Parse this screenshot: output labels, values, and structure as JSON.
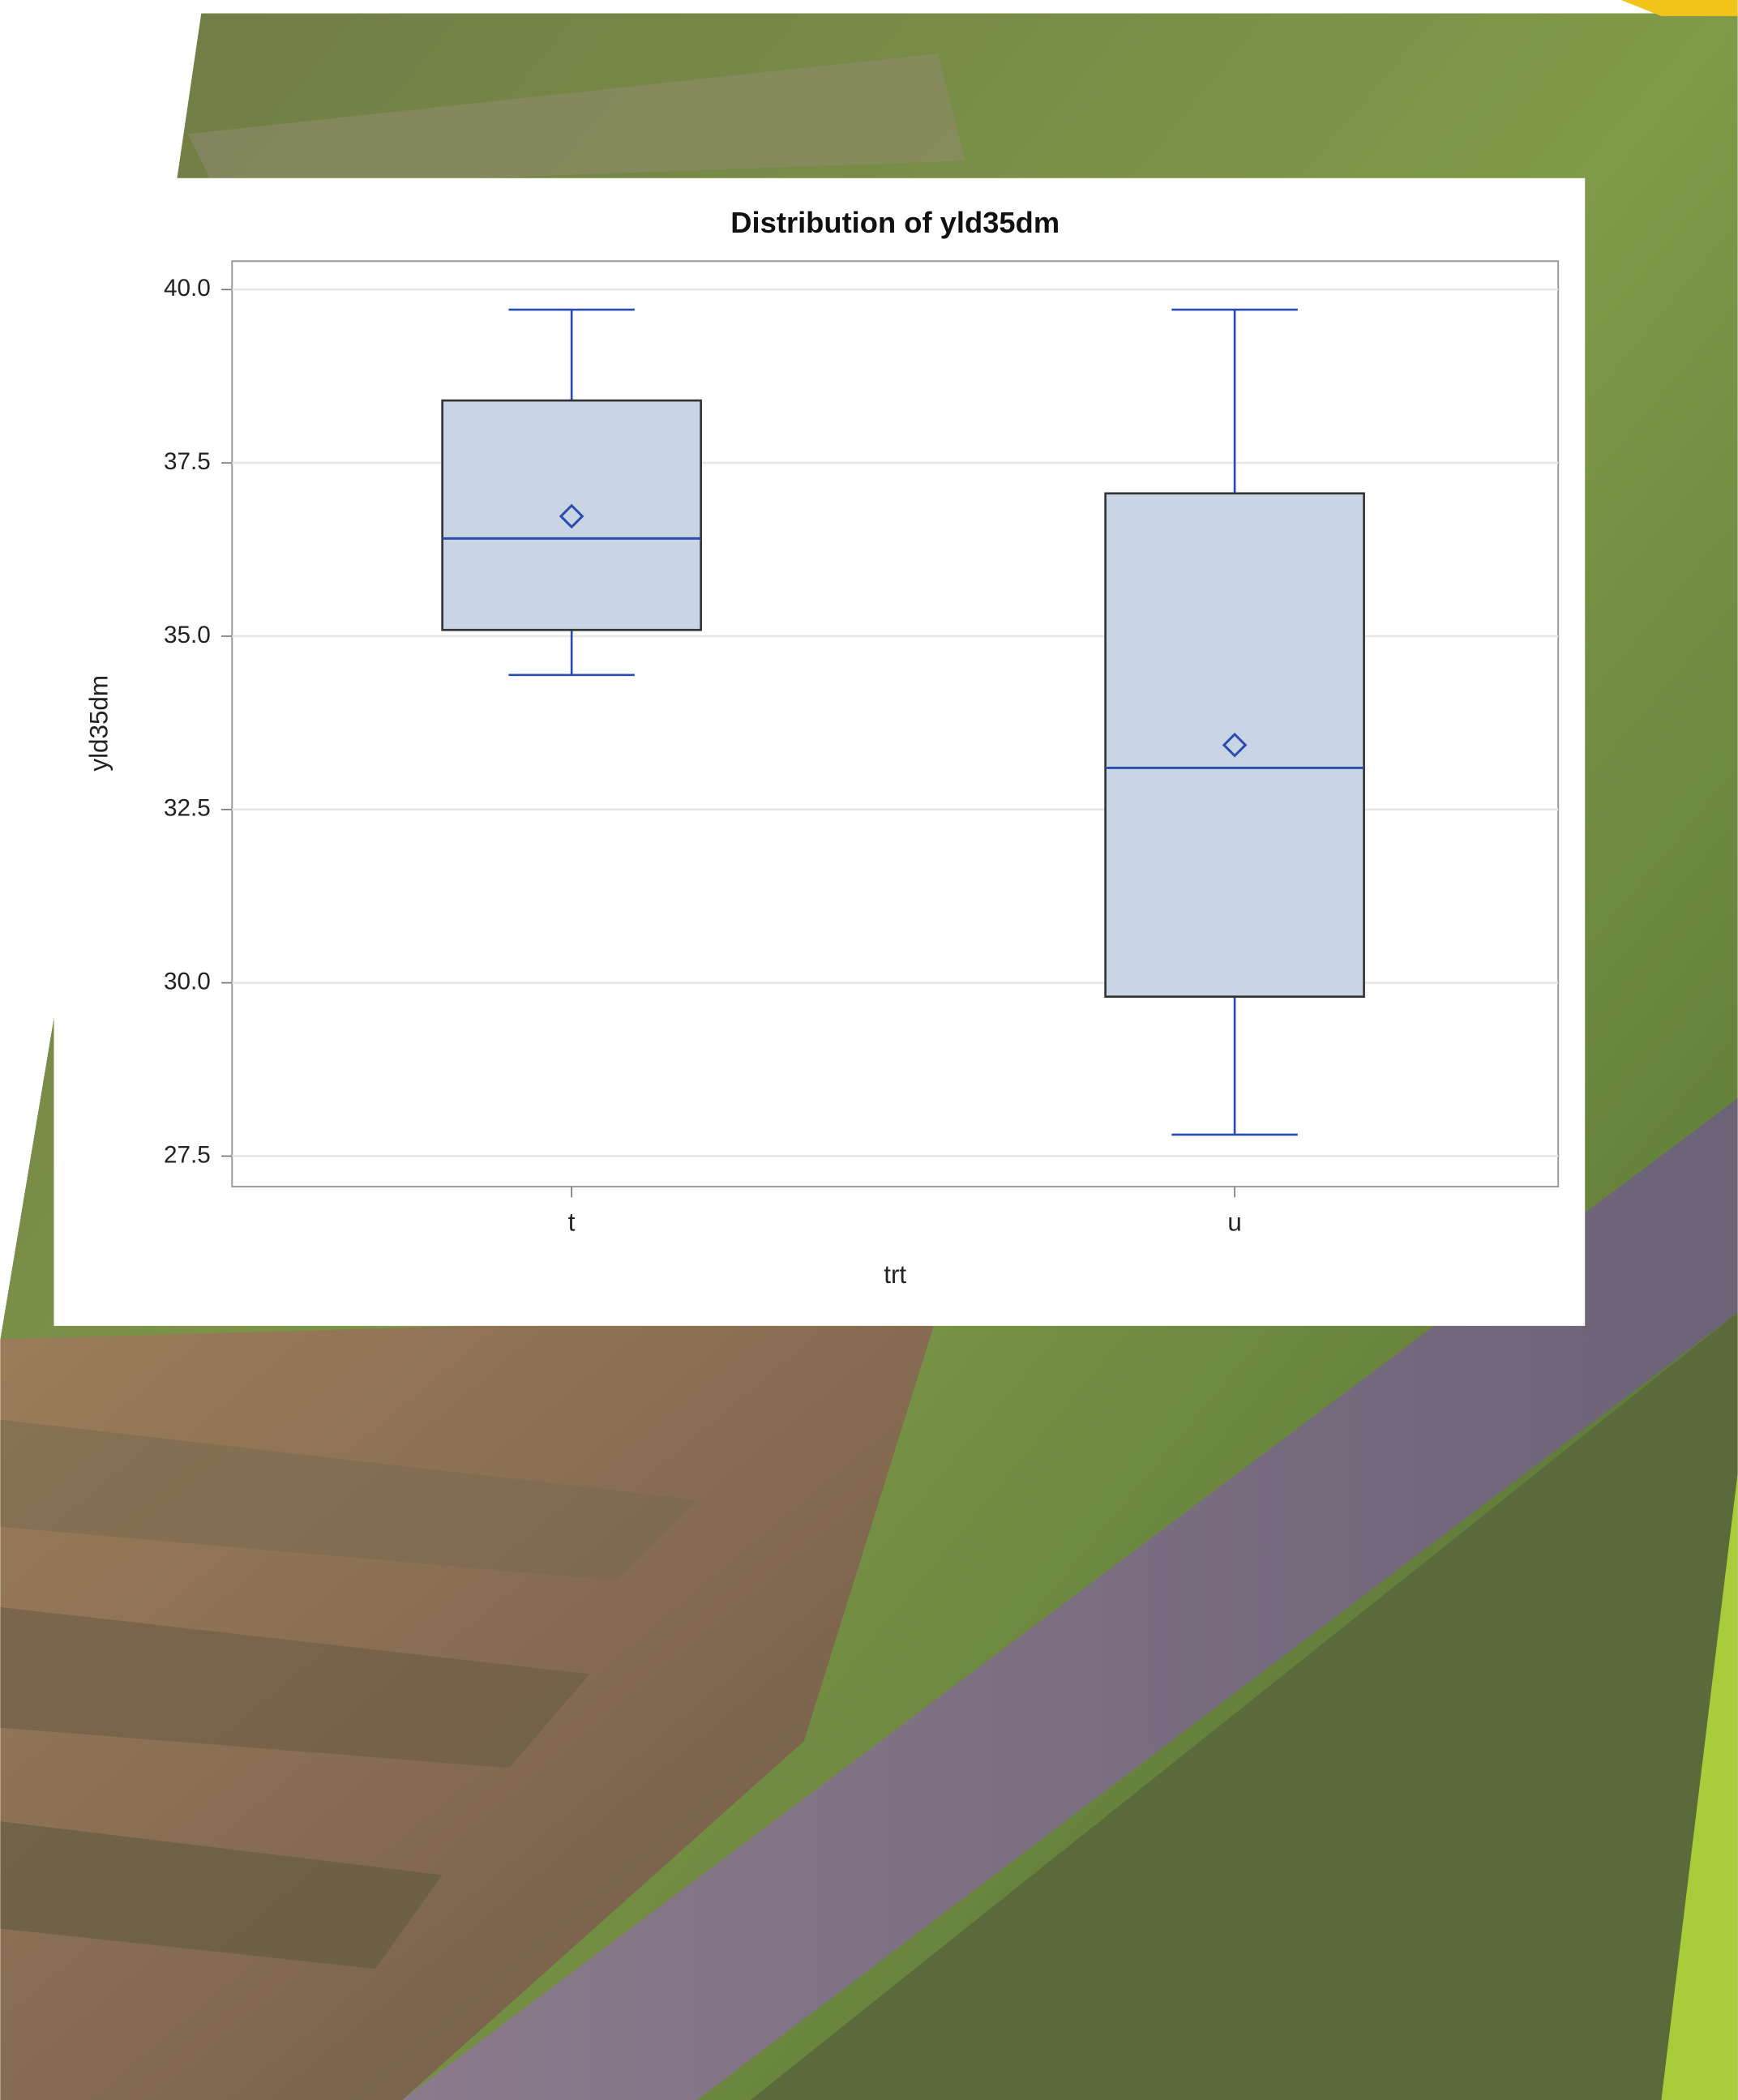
{
  "chart_data": {
    "type": "box",
    "title": "Distribution of yld35dm",
    "x_label": "trt",
    "y_label": "yld35dm",
    "categories": [
      "t",
      "u"
    ],
    "boxes": [
      {
        "whisker_low": 34.44,
        "q1": 35.09,
        "median": 36.41,
        "mean": 36.73,
        "q3": 38.4,
        "whisker_high": 39.71
      },
      {
        "whisker_low": 27.81,
        "q1": 29.8,
        "median": 33.1,
        "mean": 33.43,
        "q3": 37.06,
        "whisker_high": 39.71
      }
    ],
    "box_color": "#c9d4e5",
    "line_color": "#2a4cb0",
    "ylim": [
      27.06,
      40.41
    ],
    "yticks": [
      {
        "value": 27.5,
        "label": "27.5"
      },
      {
        "value": 30,
        "label": "30.0"
      },
      {
        "value": 32.5,
        "label": "32.5"
      },
      {
        "value": 35,
        "label": "35.0"
      },
      {
        "value": 37.5,
        "label": "37.5"
      },
      {
        "value": 40,
        "label": "40.0"
      }
    ],
    "grid": true
  }
}
